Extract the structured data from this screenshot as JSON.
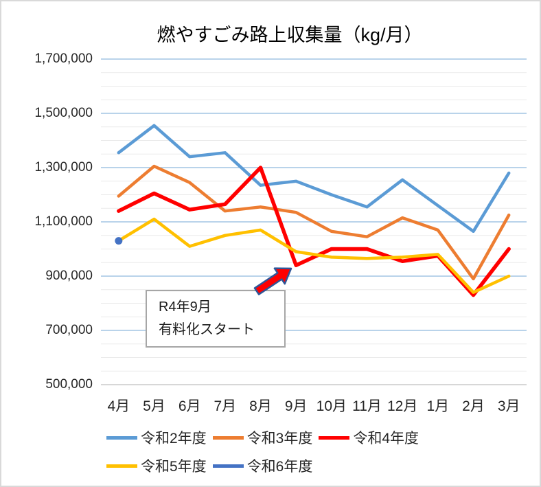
{
  "title": "燃やすごみ路上収集量（kg/月）",
  "annotation": {
    "line1": "R4年9月",
    "line2": "有料化スタート"
  },
  "colors": {
    "background": "#FFFFFF",
    "chart_border": "#D9D9D9",
    "major_gridline": "#8FB9DE",
    "minor_gridline": "#EAEAEA",
    "axis_line": "#BFBFBF",
    "text": "#262626",
    "annotation_border": "#A6A6A6",
    "annotation_fill": "#FFFFFF",
    "arrow_fill": "#FF0000",
    "arrow_outline": "#2F5597"
  },
  "chart_data": {
    "type": "line",
    "title": "燃やすごみ路上収集量（kg/月）",
    "categories": [
      "4月",
      "5月",
      "6月",
      "7月",
      "8月",
      "9月",
      "10月",
      "11月",
      "12月",
      "1月",
      "2月",
      "3月"
    ],
    "series": [
      {
        "name": "令和2年度",
        "color": "#5B9BD5",
        "width": 4.5,
        "values": [
          1355000,
          1455000,
          1340000,
          1355000,
          1235000,
          1250000,
          1200000,
          1155000,
          1255000,
          1160000,
          1065000,
          1280000
        ]
      },
      {
        "name": "令和3年度",
        "color": "#ED7D31",
        "width": 4.5,
        "values": [
          1195000,
          1305000,
          1245000,
          1140000,
          1155000,
          1135000,
          1065000,
          1045000,
          1115000,
          1070000,
          890000,
          1125000
        ]
      },
      {
        "name": "令和4年度",
        "color": "#FF0000",
        "width": 5.5,
        "values": [
          1140000,
          1205000,
          1145000,
          1165000,
          1300000,
          940000,
          1000000,
          1000000,
          955000,
          975000,
          830000,
          1000000
        ]
      },
      {
        "name": "令和5年度",
        "color": "#FFC000",
        "width": 4.5,
        "values": [
          1030000,
          1110000,
          1010000,
          1050000,
          1070000,
          990000,
          970000,
          965000,
          970000,
          980000,
          840000,
          900000
        ]
      },
      {
        "name": "令和6年度",
        "color": "#4472C4",
        "width": 4.5,
        "marker": "circle",
        "values": [
          1030000,
          null,
          null,
          null,
          null,
          null,
          null,
          null,
          null,
          null,
          null,
          null
        ]
      }
    ],
    "xlabel": "",
    "ylabel": "",
    "ylim": [
      500000,
      1700000
    ],
    "y_major_step": 200000,
    "y_minor_step": 50000,
    "y_tick_labels": [
      "1,700,000",
      "1,500,000",
      "1,300,000",
      "1,100,000",
      "900,000",
      "700,000",
      "500,000"
    ],
    "grid": "major-and-minor-horizontal",
    "legend_position": "bottom-left",
    "annotation_text": "R4年9月 有料化スタート（arrow points at 令和4年度 9月 drop）"
  }
}
